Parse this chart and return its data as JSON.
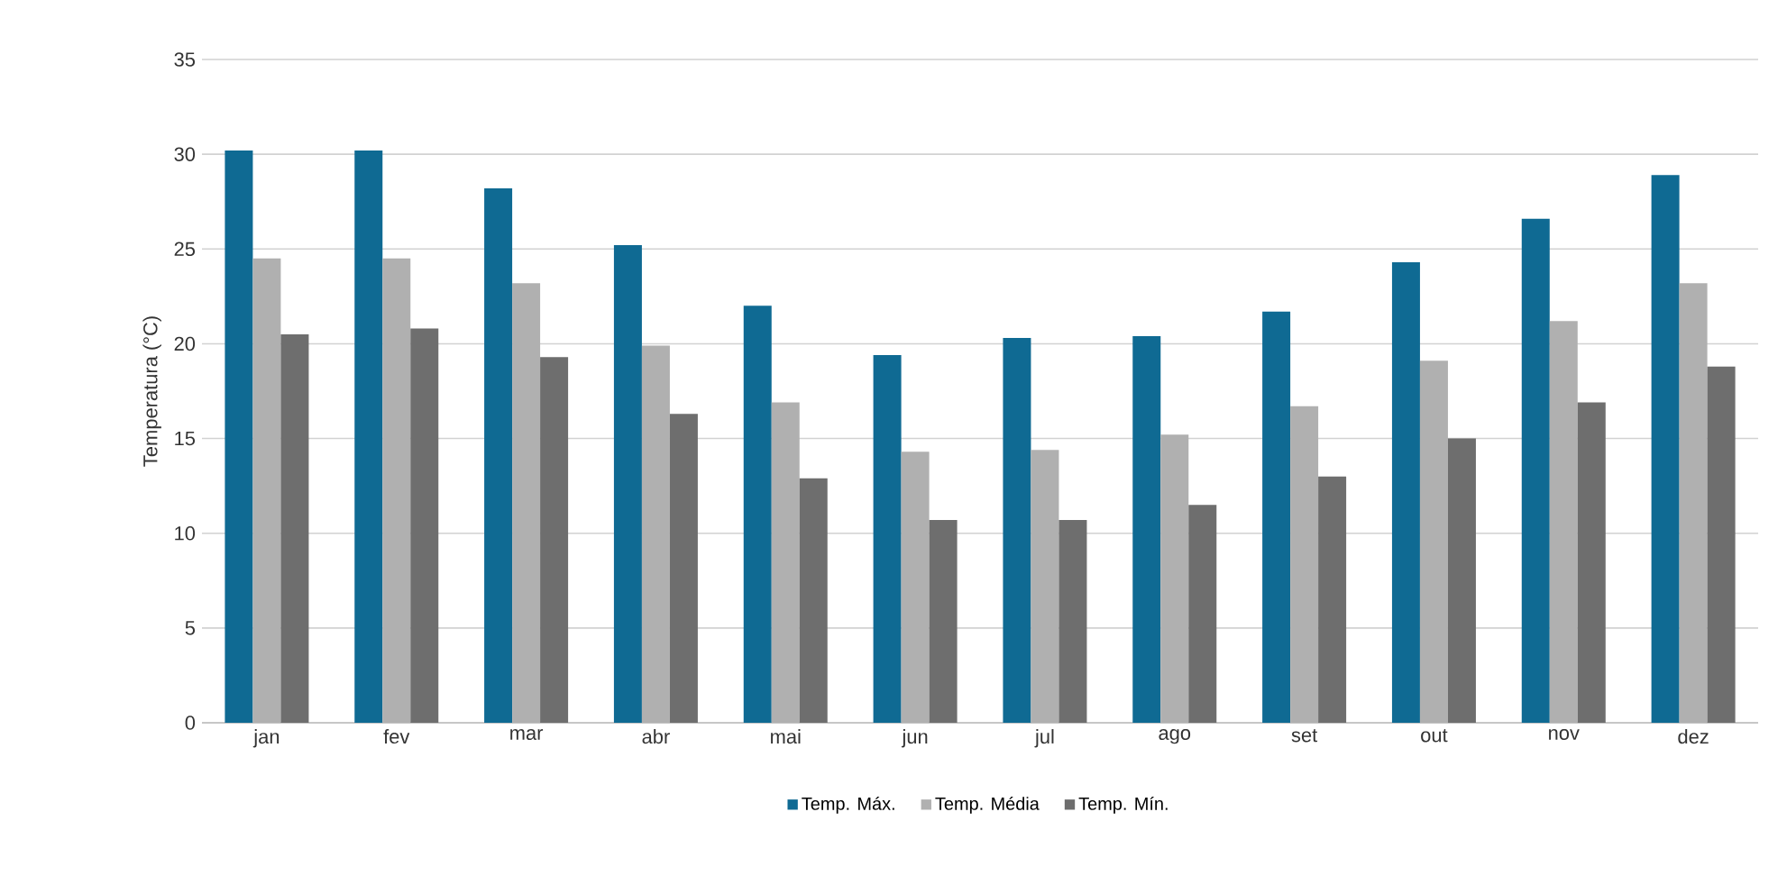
{
  "chart_data": {
    "type": "bar",
    "ylabel": "Temperatura (°C)",
    "categories": [
      "jan",
      "fev",
      "mar",
      "abr",
      "mai",
      "jun",
      "jul",
      "ago",
      "set",
      "out",
      "nov",
      "dez"
    ],
    "series": [
      {
        "name": "Temp. Máx.",
        "color": "#0f6a93",
        "values": [
          30.2,
          30.2,
          28.2,
          25.2,
          22.0,
          19.4,
          20.3,
          20.4,
          21.7,
          24.3,
          26.6,
          28.9
        ]
      },
      {
        "name": "Temp. Média",
        "color": "#b0b0b0",
        "values": [
          24.5,
          24.5,
          23.2,
          19.9,
          16.9,
          14.3,
          14.4,
          15.2,
          16.7,
          19.1,
          21.2,
          23.2
        ]
      },
      {
        "name": "Temp. Mín.",
        "color": "#6e6e6e",
        "values": [
          20.5,
          20.8,
          19.3,
          16.3,
          12.9,
          10.7,
          10.7,
          11.5,
          13.0,
          15.0,
          16.9,
          18.8
        ]
      }
    ],
    "ylim": [
      0,
      35
    ],
    "yticks": [
      0,
      5,
      10,
      15,
      20,
      25,
      30,
      35
    ],
    "grid": "y",
    "legend": "bottom"
  }
}
